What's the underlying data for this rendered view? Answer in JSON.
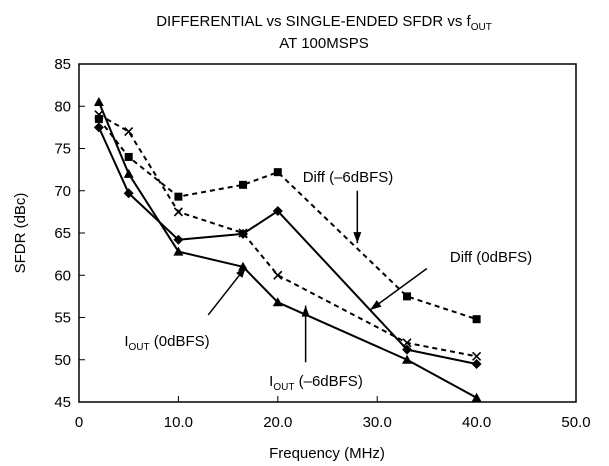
{
  "chart_data": {
    "type": "line",
    "title_line1_main": "DIFFERENTIAL vs SINGLE-ENDED SFDR vs f",
    "title_line1_sub": "OUT",
    "title_line2": "AT 100MSPS",
    "xlabel": "Frequency (MHz)",
    "ylabel": "SFDR (dBc)",
    "xlim": [
      0,
      50
    ],
    "ylim": [
      45,
      85
    ],
    "x_ticks": [
      {
        "value": 0,
        "label": "0"
      },
      {
        "value": 10,
        "label": "10.0"
      },
      {
        "value": 20,
        "label": "20.0"
      },
      {
        "value": 30,
        "label": "30.0"
      },
      {
        "value": 40,
        "label": "40.0"
      },
      {
        "value": 50,
        "label": "50.0"
      }
    ],
    "y_ticks": [
      {
        "value": 45,
        "label": "45"
      },
      {
        "value": 50,
        "label": "50"
      },
      {
        "value": 55,
        "label": "55"
      },
      {
        "value": 60,
        "label": "60"
      },
      {
        "value": 65,
        "label": "65"
      },
      {
        "value": 70,
        "label": "70"
      },
      {
        "value": 75,
        "label": "75"
      },
      {
        "value": 80,
        "label": "80"
      },
      {
        "value": 85,
        "label": "85"
      }
    ],
    "grid": false,
    "series": [
      {
        "name": "Diff (–6dBFS)",
        "style": "dashed",
        "marker": "square",
        "x": [
          2,
          5,
          10,
          16.5,
          20,
          33,
          40
        ],
        "y": [
          78.5,
          74,
          69.3,
          70.7,
          72.2,
          57.5,
          54.8
        ]
      },
      {
        "name": "Diff (0dBFS)",
        "style": "dashed",
        "marker": "x",
        "x": [
          2,
          5,
          10,
          16.5,
          20,
          33,
          40
        ],
        "y": [
          79,
          77,
          67.5,
          65,
          60,
          52,
          50.4
        ]
      },
      {
        "name": "I_OUT (0dBFS)",
        "style": "solid",
        "marker": "triangle",
        "x": [
          2,
          5,
          10,
          16.5,
          20,
          33,
          40
        ],
        "y": [
          80.5,
          72,
          62.8,
          61,
          56.8,
          50,
          45.5
        ]
      },
      {
        "name": "I_OUT (–6dBFS)",
        "style": "solid",
        "marker": "diamond",
        "x": [
          2,
          5,
          10,
          16.5,
          20,
          33,
          40
        ],
        "y": [
          77.5,
          69.7,
          64.2,
          64.9,
          67.6,
          51.2,
          49.5
        ]
      }
    ],
    "annotations": [
      {
        "id": "diff6",
        "text": "Diff (–6dBFS)",
        "main": "Diff (–6dBFS)",
        "sub": "",
        "rest": ""
      },
      {
        "id": "diff0",
        "text": "Diff (0dBFS)",
        "main": "Diff (0dBFS)",
        "sub": "",
        "rest": ""
      },
      {
        "id": "iout0",
        "text": "I_OUT (0dBFS)",
        "main": "I",
        "sub": "OUT",
        "rest": " (0dBFS)"
      },
      {
        "id": "iout6",
        "text": "I_OUT (–6dBFS)",
        "main": "I",
        "sub": "OUT",
        "rest": " (–6dBFS)"
      }
    ]
  }
}
